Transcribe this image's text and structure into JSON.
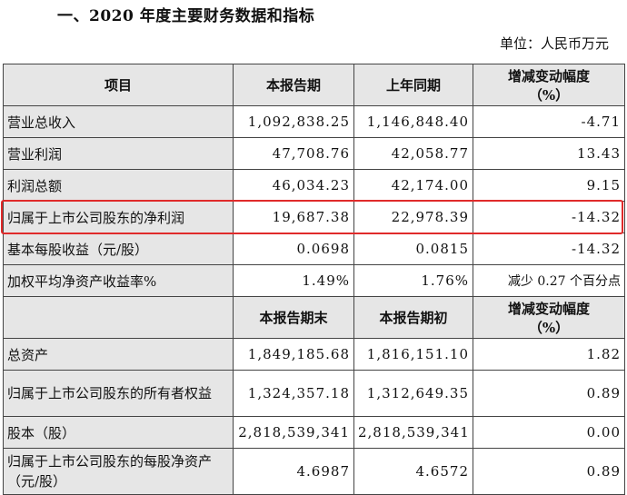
{
  "title": "一、2020 年度主要财务数据和指标",
  "unit": "单位：人民币万元",
  "header1": {
    "col0": "项目",
    "col1": "本报告期",
    "col2": "上年同期",
    "col3a": "增减变动幅度",
    "col3b": "（%）"
  },
  "header2": {
    "col1": "本报告期末",
    "col2": "本报告期初",
    "col3a": "增减变动幅度",
    "col3b": "（%）"
  },
  "rows1": [
    {
      "item": "营业总收入",
      "cur": "1,092,838.25",
      "prev": "1,146,848.40",
      "chg": "-4.71"
    },
    {
      "item": "营业利润",
      "cur": "47,708.76",
      "prev": "42,058.77",
      "chg": "13.43"
    },
    {
      "item": "利润总额",
      "cur": "46,034.23",
      "prev": "42,174.00",
      "chg": "9.15"
    },
    {
      "item": "归属于上市公司股东的净利润",
      "cur": "19,687.38",
      "prev": "22,978.39",
      "chg": "-14.32"
    },
    {
      "item": "基本每股收益（元/股）",
      "cur": "0.0698",
      "prev": "0.0815",
      "chg": "-14.32"
    },
    {
      "item": "加权平均净资产收益率%",
      "cur": "1.49%",
      "prev": "1.76%",
      "chg": "减少 0.27 个百分点"
    }
  ],
  "rows2": [
    {
      "item": "总资产",
      "cur": "1,849,185.68",
      "prev": "1,816,151.10",
      "chg": "1.82"
    },
    {
      "item": "归属于上市公司股东的所有者权益",
      "cur": "1,324,357.18",
      "prev": "1,312,649.35",
      "chg": "0.89"
    },
    {
      "item": "股本（股）",
      "cur": "2,818,539,341",
      "prev": "2,818,539,341",
      "chg": "0.00"
    },
    {
      "item": "归属于上市公司股东的每股净资产（元/股）",
      "cur": "4.6987",
      "prev": "4.6572",
      "chg": "0.89"
    }
  ],
  "highlight_color": "#e02b2b"
}
